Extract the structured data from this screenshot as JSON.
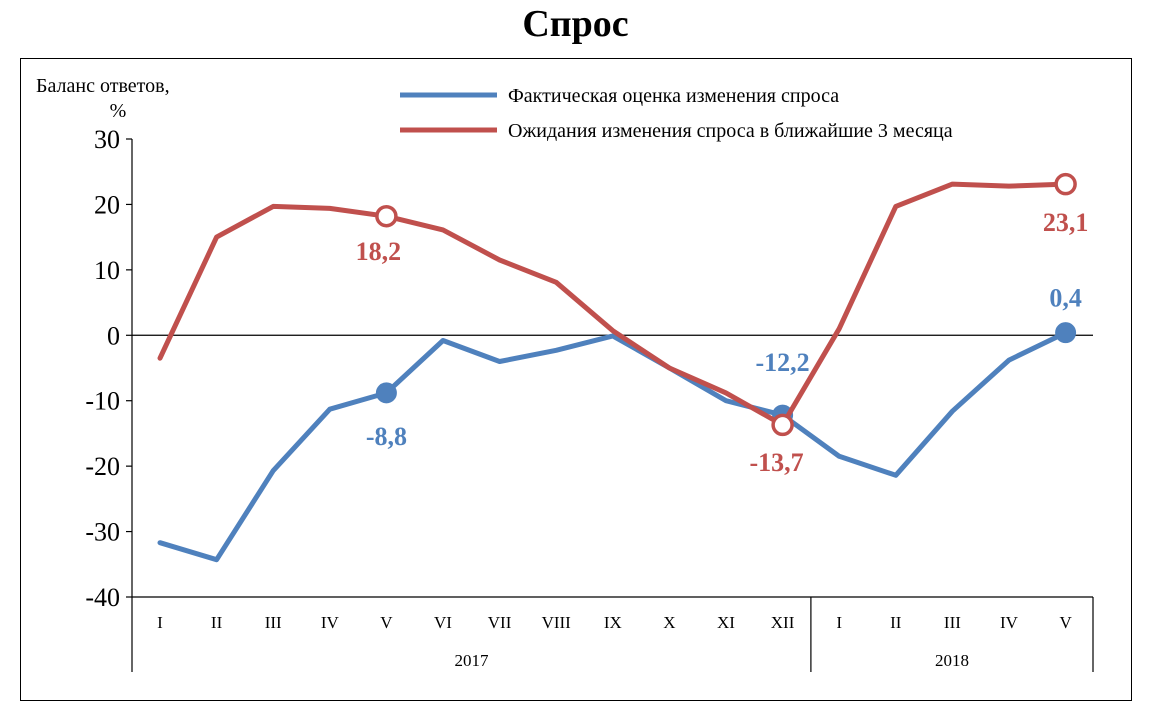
{
  "chart_data": {
    "type": "line",
    "title": "Спрос",
    "ylabel_line1": "Баланс ответов,",
    "ylabel_line2": "%",
    "ylim": [
      -40,
      30
    ],
    "yticks": [
      "30",
      "20",
      "10",
      "0",
      "-10",
      "-20",
      "-30",
      "-40"
    ],
    "ytick_values": [
      30,
      20,
      10,
      0,
      -10,
      -20,
      -30,
      -40
    ],
    "categories": [
      "I",
      "II",
      "III",
      "IV",
      "V",
      "VI",
      "VII",
      "VIII",
      "IX",
      "X",
      "XI",
      "XII",
      "I",
      "II",
      "III",
      "IV",
      "V"
    ],
    "years": [
      {
        "label": "2017",
        "start": 0,
        "end": 11
      },
      {
        "label": "2018",
        "start": 12,
        "end": 16
      }
    ],
    "legend_position": "top-right",
    "series": [
      {
        "name": "Фактическая оценка изменения спроса",
        "color": "#4f81bd",
        "marker": "filled",
        "values": [
          -31.7,
          -34.3,
          -20.7,
          -11.3,
          -8.8,
          -0.8,
          -4.0,
          -2.3,
          -0.1,
          -5.0,
          -10.0,
          -12.2,
          -18.5,
          -21.4,
          -11.6,
          -3.8,
          0.4
        ],
        "labels": [
          {
            "index": 4,
            "text": "-8,8"
          },
          {
            "index": 11,
            "text": "-12,2"
          },
          {
            "index": 16,
            "text": "0,4"
          }
        ]
      },
      {
        "name": "Ожидания изменения спроса в ближайшие 3 месяца",
        "color": "#c0504d",
        "marker": "hollow",
        "values": [
          -3.5,
          15.0,
          19.7,
          19.4,
          18.2,
          16.1,
          11.5,
          8.1,
          0.7,
          -5.0,
          -8.8,
          -13.7,
          1.0,
          19.7,
          23.1,
          22.8,
          23.1
        ],
        "labels": [
          {
            "index": 4,
            "text": "18,2"
          },
          {
            "index": 11,
            "text": "-13,7"
          },
          {
            "index": 16,
            "text": "23,1"
          }
        ]
      }
    ]
  }
}
